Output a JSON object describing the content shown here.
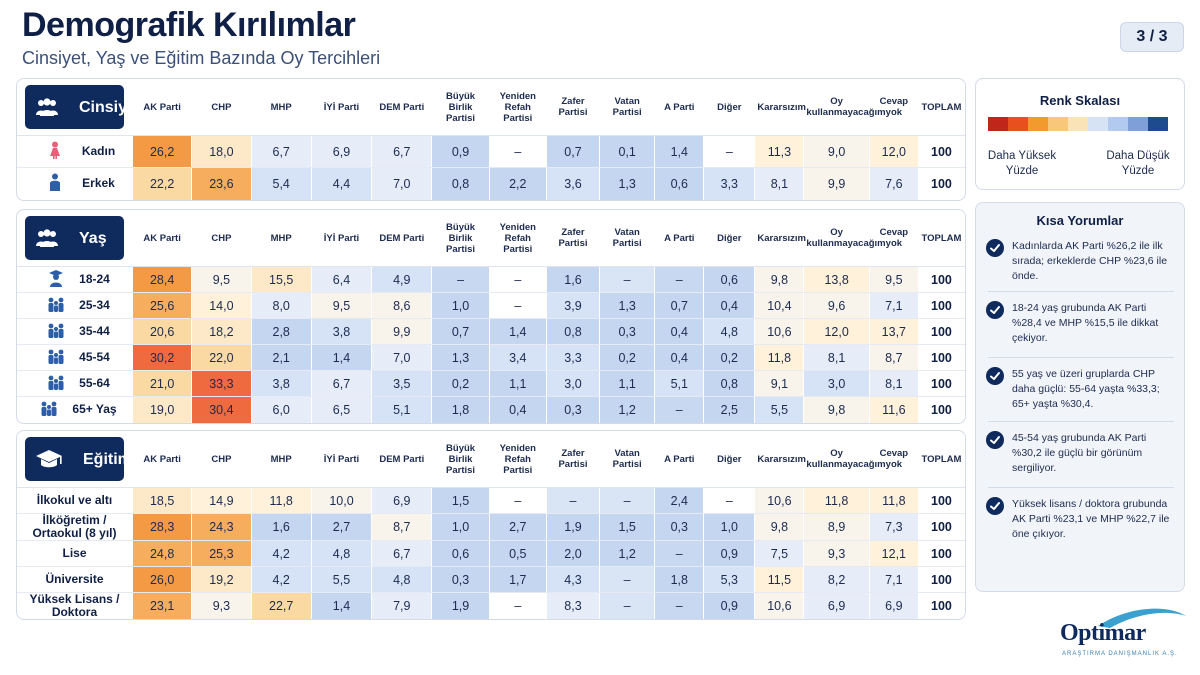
{
  "header": {
    "title": "Demografik Kırılımlar",
    "subtitle": "Cinsiyet, Yaş ve Eğitim Bazında Oy Tercihleri",
    "page": "3 / 3"
  },
  "columns": [
    "AK Parti",
    "CHP",
    "MHP",
    "İYİ Parti",
    "DEM Parti",
    "Büyük\nBirlik\nPartisi",
    "Yeniden\nRefah\nPartisi",
    "Zafer\nPartisi",
    "Vatan\nPartisi",
    "A Parti",
    "Diğer",
    "Kararsızım",
    "Oy\nkullanmayacağım",
    "Cevap\nyok",
    "TOPLAM"
  ],
  "sections": [
    {
      "id": "cinsiyet",
      "label": "Cinsiyet",
      "icon": "people-group-icon",
      "rows": [
        {
          "label": "Kadın",
          "icon": "female-icon",
          "values": [
            "26,2",
            "18,0",
            "6,7",
            "6,9",
            "6,7",
            "0,9",
            "–",
            "0,7",
            "0,1",
            "1,4",
            "–",
            "11,3",
            "9,0",
            "12,0"
          ],
          "total": "100"
        },
        {
          "label": "Erkek",
          "icon": "male-icon",
          "values": [
            "22,2",
            "23,6",
            "5,4",
            "4,4",
            "7,0",
            "0,8",
            "2,2",
            "3,6",
            "1,3",
            "0,6",
            "3,3",
            "8,1",
            "9,9",
            "7,6"
          ],
          "total": "100"
        }
      ]
    },
    {
      "id": "yas",
      "label": "Yaş",
      "icon": "people-group-icon",
      "rows": [
        {
          "label": "18-24",
          "icon": "student-icon",
          "values": [
            "28,4",
            "9,5",
            "15,5",
            "6,4",
            "4,9",
            "–",
            "–",
            "1,6",
            "–",
            "–",
            "0,6",
            "9,8",
            "13,8",
            "9,5"
          ],
          "total": "100"
        },
        {
          "label": "25-34",
          "icon": "family-icon",
          "values": [
            "25,6",
            "14,0",
            "8,0",
            "9,5",
            "8,6",
            "1,0",
            "–",
            "3,9",
            "1,3",
            "0,7",
            "0,4",
            "10,4",
            "9,6",
            "7,1"
          ],
          "total": "100"
        },
        {
          "label": "35-44",
          "icon": "family-icon",
          "values": [
            "20,6",
            "18,2",
            "2,8",
            "3,8",
            "9,9",
            "0,7",
            "1,4",
            "0,8",
            "0,3",
            "0,4",
            "4,8",
            "10,6",
            "12,0",
            "13,7"
          ],
          "total": "100"
        },
        {
          "label": "45-54",
          "icon": "family-icon",
          "values": [
            "30,2",
            "22,0",
            "2,1",
            "1,4",
            "7,0",
            "1,3",
            "3,4",
            "3,3",
            "0,2",
            "0,4",
            "0,2",
            "11,8",
            "8,1",
            "8,7"
          ],
          "total": "100"
        },
        {
          "label": "55-64",
          "icon": "family-icon",
          "values": [
            "21,0",
            "33,3",
            "3,8",
            "6,7",
            "3,5",
            "0,2",
            "1,1",
            "3,0",
            "1,1",
            "5,1",
            "0,8",
            "9,1",
            "3,0",
            "8,1"
          ],
          "total": "100"
        },
        {
          "label": "65+ Yaş",
          "icon": "family-icon",
          "values": [
            "19,0",
            "30,4",
            "6,0",
            "6,5",
            "5,1",
            "1,8",
            "0,4",
            "0,3",
            "1,2",
            "–",
            "2,5",
            "5,5",
            "9,8",
            "11,6"
          ],
          "total": "100"
        }
      ]
    },
    {
      "id": "egitim",
      "label": "Eğitim",
      "icon": "graduation-cap-icon",
      "rows": [
        {
          "label": "İlkokul ve altı",
          "values": [
            "18,5",
            "14,9",
            "11,8",
            "10,0",
            "6,9",
            "1,5",
            "–",
            "–",
            "–",
            "2,4",
            "–",
            "10,6",
            "11,8",
            "11,8"
          ],
          "total": "100"
        },
        {
          "label": "İlköğretim /\nOrtaokul (8 yıl)",
          "values": [
            "28,3",
            "24,3",
            "1,6",
            "2,7",
            "8,7",
            "1,0",
            "2,7",
            "1,9",
            "1,5",
            "0,3",
            "1,0",
            "9,8",
            "8,9",
            "7,3"
          ],
          "total": "100"
        },
        {
          "label": "Lise",
          "values": [
            "24,8",
            "25,3",
            "4,2",
            "4,8",
            "6,7",
            "0,6",
            "0,5",
            "2,0",
            "1,2",
            "–",
            "0,9",
            "7,5",
            "9,3",
            "12,1"
          ],
          "total": "100"
        },
        {
          "label": "Üniversite",
          "values": [
            "26,0",
            "19,2",
            "4,2",
            "5,5",
            "4,8",
            "0,3",
            "1,7",
            "4,3",
            "–",
            "1,8",
            "5,3",
            "11,5",
            "8,2",
            "7,1"
          ],
          "total": "100"
        },
        {
          "label": "Yüksek Lisans /\nDoktora",
          "values": [
            "23,1",
            "9,3",
            "22,7",
            "1,4",
            "7,9",
            "1,9",
            "–",
            "8,3",
            "–",
            "–",
            "0,9",
            "10,6",
            "6,9",
            "6,9"
          ],
          "total": "100"
        }
      ]
    }
  ],
  "legend": {
    "title": "Renk Skalası",
    "high_label": "Daha Yüksek\nYüzde",
    "low_label": "Daha Düşük\nYüzde",
    "colors": [
      "#c0261a",
      "#e8501e",
      "#f39a2f",
      "#f9c77a",
      "#fbe3b8",
      "#d6e3f5",
      "#b2caef",
      "#7f9fd9",
      "#1e4a8f"
    ]
  },
  "notes": {
    "title": "Kısa Yorumlar",
    "items": [
      "Kadınlarda AK Parti %26,2 ile ilk sırada; erkeklerde CHP %23,6 ile önde.",
      "18-24 yaş grubunda AK Parti %28,4 ve MHP %15,5 ile dikkat çekiyor.",
      "55 yaş ve üzeri gruplarda CHP daha güçlü: 55-64 yaşta %33,3; 65+ yaşta %30,4.",
      "45-54 yaş grubunda AK Parti %30,2 ile güçlü bir görünüm sergiliyor.",
      "Yüksek lisans / doktora grubunda AK Parti %23,1 ve MHP %22,7 ile öne çıkıyor."
    ]
  },
  "logo": {
    "name": "Optimar",
    "tagline": "ARAŞTIRMA DANIŞMANLIK A.Ş."
  }
}
